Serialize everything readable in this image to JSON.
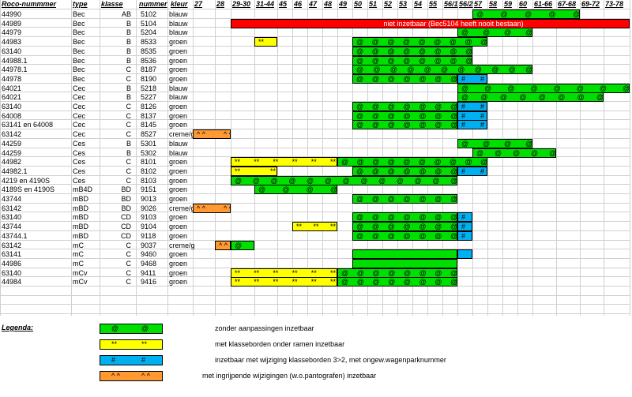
{
  "headers": {
    "roco": "Roco-nummmer",
    "type": "type",
    "klasse": "klasse",
    "nummer": "nummer",
    "kleur": "kleur",
    "periods": [
      "27",
      "28",
      "29-30",
      "31-44",
      "45",
      "46",
      "47",
      "48",
      "49",
      "50",
      "51",
      "52",
      "53",
      "54",
      "55",
      "56/1",
      "56/2",
      "57",
      "58",
      "59",
      "60",
      "61-66",
      "67-68",
      "69-72",
      "73-78"
    ]
  },
  "colors": {
    "green": "#00e000",
    "yellow": "#ffff00",
    "cyan": "#00b0f0",
    "orange": "#ff9933",
    "red": "#ff0000"
  },
  "rows": [
    {
      "roco": "44990",
      "type": "Bec",
      "klasse": "AB",
      "nummer": "5102",
      "kleur": "blauw",
      "bars": [
        {
          "c": "green",
          "from": 17,
          "to": 23,
          "syms": [
            "@",
            "@",
            "@",
            "@",
            "@"
          ]
        }
      ]
    },
    {
      "roco": "44989",
      "type": "Bec",
      "klasse": "B",
      "nummer": "5104",
      "kleur": "blauw",
      "bars": [
        {
          "c": "red",
          "from": 2,
          "to": 25,
          "text": "niet inzetbaar (Bec5104 heeft nooit bestaan)"
        }
      ]
    },
    {
      "roco": "44979",
      "type": "Bec",
      "klasse": "B",
      "nummer": "5204",
      "kleur": "blauw",
      "bars": [
        {
          "c": "green",
          "from": 16,
          "to": 21,
          "syms": [
            "@",
            "@",
            "@",
            "@"
          ]
        }
      ]
    },
    {
      "roco": "44983",
      "type": "Bec",
      "klasse": "B",
      "nummer": "8533",
      "kleur": "groen",
      "bars": [
        {
          "c": "yellow",
          "from": 3,
          "to": 4,
          "syms": [
            "**"
          ]
        },
        {
          "c": "green",
          "from": 9,
          "to": 18,
          "syms": [
            "@",
            "@",
            "@",
            "@",
            "@",
            "@",
            "@",
            "@",
            "@"
          ]
        }
      ]
    },
    {
      "roco": "63140",
      "type": "Bec",
      "klasse": "B",
      "nummer": "8535",
      "kleur": "groen",
      "bars": [
        {
          "c": "green",
          "from": 9,
          "to": 17,
          "syms": [
            "@",
            "@",
            "@",
            "@",
            "@",
            "@",
            "@",
            "@"
          ]
        }
      ]
    },
    {
      "roco": "44988.1",
      "type": "Bec",
      "klasse": "B",
      "nummer": "8536",
      "kleur": "groen",
      "bars": [
        {
          "c": "green",
          "from": 9,
          "to": 17,
          "syms": [
            "@",
            "@",
            "@",
            "@",
            "@",
            "@",
            "@",
            "@"
          ]
        }
      ]
    },
    {
      "roco": "44978.1",
      "type": "Bec",
      "klasse": "C",
      "nummer": "8187",
      "kleur": "groen",
      "bars": [
        {
          "c": "green",
          "from": 9,
          "to": 21,
          "syms": [
            "@",
            "@",
            "@",
            "@",
            "@",
            "@",
            "@",
            "@",
            "@",
            "@",
            "@"
          ]
        }
      ]
    },
    {
      "roco": "44978",
      "type": "Bec",
      "klasse": "C",
      "nummer": "8190",
      "kleur": "groen",
      "bars": [
        {
          "c": "green",
          "from": 9,
          "to": 16,
          "syms": [
            "@",
            "@",
            "@",
            "@",
            "@",
            "@",
            "@"
          ]
        },
        {
          "c": "cyan",
          "from": 16,
          "to": 18,
          "syms": [
            "#",
            "#"
          ]
        }
      ]
    },
    {
      "roco": "64021",
      "type": "Cec",
      "klasse": "B",
      "nummer": "5218",
      "kleur": "blauw",
      "bars": [
        {
          "c": "green",
          "from": 16,
          "to": 25,
          "syms": [
            "@",
            "@",
            "@",
            "@",
            "@",
            "@",
            "@",
            "@"
          ]
        }
      ]
    },
    {
      "roco": "64021",
      "type": "Cec",
      "klasse": "B",
      "nummer": "5227",
      "kleur": "blauw",
      "bars": [
        {
          "c": "green",
          "from": 16,
          "to": 24,
          "syms": [
            "@",
            "@",
            "@",
            "@",
            "@",
            "@",
            "@",
            "@"
          ]
        }
      ]
    },
    {
      "roco": "63140",
      "type": "Cec",
      "klasse": "C",
      "nummer": "8126",
      "kleur": "groen",
      "bars": [
        {
          "c": "green",
          "from": 9,
          "to": 16,
          "syms": [
            "@",
            "@",
            "@",
            "@",
            "@",
            "@",
            "@"
          ]
        },
        {
          "c": "cyan",
          "from": 16,
          "to": 18,
          "syms": [
            "#",
            "#"
          ]
        }
      ]
    },
    {
      "roco": "64008",
      "type": "Cec",
      "klasse": "C",
      "nummer": "8137",
      "kleur": "groen",
      "bars": [
        {
          "c": "green",
          "from": 9,
          "to": 16,
          "syms": [
            "@",
            "@",
            "@",
            "@",
            "@",
            "@",
            "@"
          ]
        },
        {
          "c": "cyan",
          "from": 16,
          "to": 18,
          "syms": [
            "#",
            "#"
          ]
        }
      ]
    },
    {
      "roco": "63141 en 64008",
      "type": "Cec",
      "klasse": "C",
      "nummer": "8145",
      "kleur": "groen",
      "bars": [
        {
          "c": "green",
          "from": 9,
          "to": 16,
          "syms": [
            "@",
            "@",
            "@",
            "@",
            "@",
            "@",
            "@"
          ]
        },
        {
          "c": "cyan",
          "from": 16,
          "to": 18,
          "syms": [
            "#",
            "#"
          ]
        }
      ]
    },
    {
      "roco": "63142",
      "type": "Cec",
      "klasse": "C",
      "nummer": "8527",
      "kleur": "creme/g",
      "bars": [
        {
          "c": "orange",
          "from": 0,
          "to": 2,
          "syms": [
            "^ ^",
            "^ ^"
          ]
        }
      ]
    },
    {
      "roco": "44259",
      "type": "Ces",
      "klasse": "B",
      "nummer": "5301",
      "kleur": "blauw",
      "bars": [
        {
          "c": "green",
          "from": 16,
          "to": 21,
          "syms": [
            "@",
            "@",
            "@",
            "@"
          ]
        }
      ]
    },
    {
      "roco": "44259",
      "type": "Ces",
      "klasse": "B",
      "nummer": "5302",
      "kleur": "blauw",
      "bars": [
        {
          "c": "green",
          "from": 17,
          "to": 22,
          "syms": [
            "@",
            "@",
            "@",
            "@",
            "@"
          ]
        }
      ]
    },
    {
      "roco": "44982",
      "type": "Ces",
      "klasse": "C",
      "nummer": "8101",
      "kleur": "groen",
      "bars": [
        {
          "c": "yellow",
          "from": 2,
          "to": 8,
          "syms": [
            "**",
            "**",
            "**",
            "**",
            "**",
            "**"
          ]
        },
        {
          "c": "green",
          "from": 8,
          "to": 18,
          "syms": [
            "@",
            "@",
            "@",
            "@",
            "@",
            "@",
            "@",
            "@",
            "@",
            "@"
          ]
        }
      ]
    },
    {
      "roco": "44982.1",
      "type": "Ces",
      "klasse": "C",
      "nummer": "8102",
      "kleur": "groen",
      "bars": [
        {
          "c": "yellow",
          "from": 2,
          "to": 4,
          "syms": [
            "**",
            "**"
          ]
        },
        {
          "c": "green",
          "from": 9,
          "to": 16,
          "syms": [
            "@",
            "@",
            "@",
            "@",
            "@",
            "@",
            "@"
          ]
        },
        {
          "c": "cyan",
          "from": 16,
          "to": 18,
          "syms": [
            "#",
            "#"
          ]
        }
      ]
    },
    {
      "roco": "4219   en   4190S",
      "type": "Ces",
      "klasse": "C",
      "nummer": "8103",
      "kleur": "groen",
      "bars": [
        {
          "c": "green",
          "from": 2,
          "to": 16,
          "syms": [
            "@",
            "@",
            "@",
            "@",
            "@",
            "@",
            "@",
            "@",
            "@",
            "@",
            "@",
            "@",
            "@"
          ]
        }
      ]
    },
    {
      "roco": "4189S  en   4190S",
      "type": "mB4D",
      "klasse": "BD",
      "nummer": "9151",
      "kleur": "groen",
      "bars": [
        {
          "c": "green",
          "from": 3,
          "to": 8,
          "syms": [
            "@",
            "@",
            "@",
            "@"
          ]
        }
      ]
    },
    {
      "roco": "43744",
      "type": "mBD",
      "klasse": "BD",
      "nummer": "9013",
      "kleur": "groen",
      "bars": [
        {
          "c": "green",
          "from": 9,
          "to": 16,
          "syms": [
            "@",
            "@",
            "@",
            "@",
            "@",
            "@",
            "@"
          ]
        }
      ]
    },
    {
      "roco": "63142",
      "type": "mBD",
      "klasse": "BD",
      "nummer": "9026",
      "kleur": "creme/g",
      "bars": [
        {
          "c": "orange",
          "from": 0,
          "to": 2,
          "syms": [
            "^ ^",
            "^ ^"
          ]
        }
      ]
    },
    {
      "roco": "63140",
      "type": "mBD",
      "klasse": "CD",
      "nummer": "9103",
      "kleur": "groen",
      "bars": [
        {
          "c": "green",
          "from": 9,
          "to": 16,
          "syms": [
            "@",
            "@",
            "@",
            "@",
            "@",
            "@",
            "@"
          ]
        },
        {
          "c": "cyan",
          "from": 16,
          "to": 17,
          "syms": [
            "#"
          ]
        }
      ]
    },
    {
      "roco": "43744",
      "type": "mBD",
      "klasse": "CD",
      "nummer": "9104",
      "kleur": "groen",
      "bars": [
        {
          "c": "yellow",
          "from": 5,
          "to": 8,
          "syms": [
            "**",
            "**",
            "**"
          ]
        },
        {
          "c": "green",
          "from": 9,
          "to": 16,
          "syms": [
            "@",
            "@",
            "@",
            "@",
            "@",
            "@",
            "@"
          ]
        },
        {
          "c": "cyan",
          "from": 16,
          "to": 17,
          "syms": [
            "#"
          ]
        }
      ]
    },
    {
      "roco": "43744.1",
      "type": "mBD",
      "klasse": "CD",
      "nummer": "9118",
      "kleur": "groen",
      "bars": [
        {
          "c": "green",
          "from": 9,
          "to": 16,
          "syms": [
            "@",
            "@",
            "@",
            "@",
            "@",
            "@",
            "@"
          ]
        },
        {
          "c": "cyan",
          "from": 16,
          "to": 17,
          "syms": [
            "#"
          ]
        }
      ]
    },
    {
      "roco": "63142",
      "type": "mC",
      "klasse": "C",
      "nummer": "9037",
      "kleur": "creme/g",
      "bars": [
        {
          "c": "orange",
          "from": 1,
          "to": 2,
          "syms": [
            "^ ^"
          ]
        },
        {
          "c": "green",
          "from": 2,
          "to": 3,
          "syms": [
            "@"
          ]
        }
      ]
    },
    {
      "roco": "63141",
      "type": "mC",
      "klasse": "C",
      "nummer": "9460",
      "kleur": "groen",
      "bars": [
        {
          "c": "green",
          "from": 9,
          "to": 16,
          "syms": []
        },
        {
          "c": "cyan",
          "from": 16,
          "to": 17,
          "syms": []
        }
      ]
    },
    {
      "roco": "44986",
      "type": "mC",
      "klasse": "C",
      "nummer": "9468",
      "kleur": "groen",
      "bars": [
        {
          "c": "green",
          "from": 9,
          "to": 16,
          "syms": []
        }
      ]
    },
    {
      "roco": "63140",
      "type": "mCv",
      "klasse": "C",
      "nummer": "9411",
      "kleur": "groen",
      "bars": [
        {
          "c": "yellow",
          "from": 2,
          "to": 8,
          "syms": [
            "**",
            "**",
            "**",
            "**",
            "**",
            "**"
          ]
        },
        {
          "c": "green",
          "from": 8,
          "to": 16,
          "syms": [
            "@",
            "@",
            "@",
            "@",
            "@",
            "@",
            "@",
            "@"
          ]
        }
      ]
    },
    {
      "roco": "44984",
      "type": "mCv",
      "klasse": "C",
      "nummer": "9416",
      "kleur": "groen",
      "bars": [
        {
          "c": "yellow",
          "from": 2,
          "to": 8,
          "syms": [
            "**",
            "**",
            "**",
            "**",
            "**",
            "**"
          ]
        },
        {
          "c": "green",
          "from": 8,
          "to": 16,
          "syms": [
            "@",
            "@",
            "@",
            "@",
            "@",
            "@",
            "@",
            "@"
          ]
        }
      ]
    }
  ],
  "legend": {
    "title": "Legenda:",
    "items": [
      {
        "c": "green",
        "syms": [
          "@",
          "@"
        ],
        "text": "zonder aanpassingen inzetbaar"
      },
      {
        "c": "yellow",
        "syms": [
          "**",
          "**"
        ],
        "text": "met klasseborden onder ramen inzetbaar"
      },
      {
        "c": "cyan",
        "syms": [
          "#",
          "#"
        ],
        "text": "inzetbaar met wijziging klasseborden 3>2, met ongew.wagenparknummer"
      },
      {
        "c": "orange",
        "syms": [
          "^ ^",
          "^ ^"
        ],
        "text": "met ingrijpende wijzigingen (w.o.pantografen) inzetbaar"
      }
    ]
  }
}
